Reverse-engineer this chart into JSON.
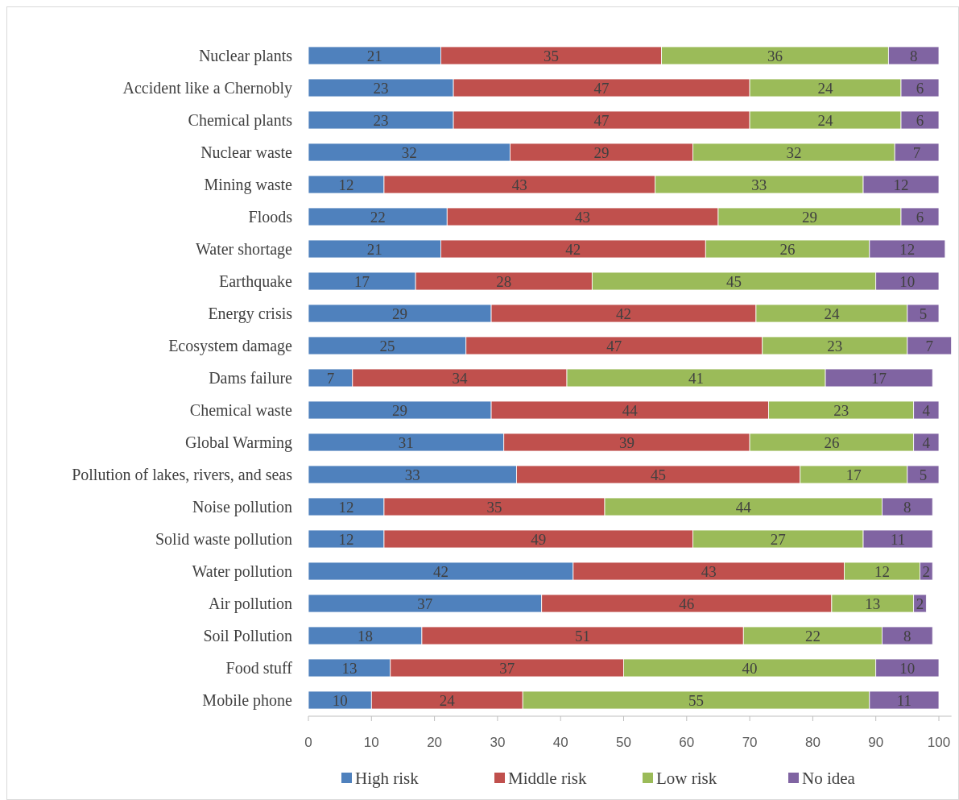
{
  "chart_data": {
    "type": "bar",
    "orientation": "horizontal",
    "stacked": true,
    "data_labels": true,
    "grid": false,
    "legend": "bottom",
    "categories": [
      "Nuclear plants",
      "Accident like a Chernobly",
      "Chemical plants",
      "Nuclear waste",
      "Mining waste",
      "Floods",
      "Water shortage",
      "Earthquake",
      "Energy crisis",
      "Ecosystem damage",
      "Dams failure",
      "Chemical waste",
      "Global Warming",
      "Pollution of lakes, rivers, and seas",
      "Noise pollution",
      "Solid waste pollution",
      "Water pollution",
      "Air pollution",
      "Soil Pollution",
      "Food stuff",
      "Mobile phone"
    ],
    "xlim": [
      0,
      102
    ],
    "xticks": [
      0,
      10,
      20,
      30,
      40,
      50,
      60,
      70,
      80,
      90,
      100
    ],
    "series": [
      {
        "name": "High risk",
        "color": "#4f81bd",
        "values": [
          21,
          23,
          23,
          32,
          12,
          22,
          21,
          17,
          29,
          25,
          7,
          29,
          31,
          33,
          12,
          12,
          42,
          37,
          18,
          13,
          10
        ]
      },
      {
        "name": "Middle risk",
        "color": "#c0504d",
        "values": [
          35,
          47,
          47,
          29,
          43,
          43,
          42,
          28,
          42,
          47,
          34,
          44,
          39,
          45,
          35,
          49,
          43,
          46,
          51,
          37,
          24
        ]
      },
      {
        "name": "Low risk",
        "color": "#9bbb59",
        "values": [
          36,
          24,
          24,
          32,
          33,
          29,
          26,
          45,
          24,
          23,
          41,
          23,
          26,
          17,
          44,
          27,
          12,
          13,
          22,
          40,
          55
        ]
      },
      {
        "name": "No idea",
        "color": "#8064a2",
        "values": [
          8,
          6,
          6,
          7,
          12,
          6,
          12,
          10,
          5,
          7,
          17,
          4,
          4,
          5,
          8,
          11,
          2,
          2,
          8,
          10,
          11
        ]
      }
    ]
  }
}
